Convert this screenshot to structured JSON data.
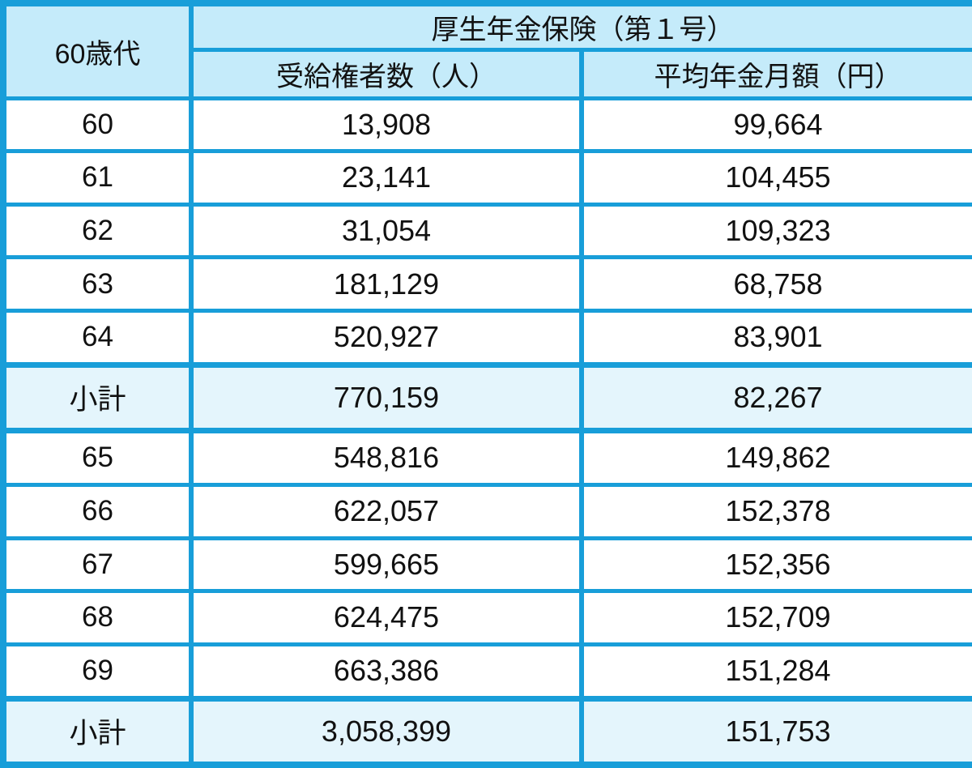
{
  "header": {
    "age_group": "60歳代",
    "insurance": "厚生年金保険（第１号）",
    "beneficiaries": "受給権者数（人）",
    "avg_monthly": "平均年金月額（円）"
  },
  "rows": [
    {
      "label": "60",
      "beneficiaries": "13,908",
      "avg_monthly": "99,664",
      "subtotal": false
    },
    {
      "label": "61",
      "beneficiaries": "23,141",
      "avg_monthly": "104,455",
      "subtotal": false
    },
    {
      "label": "62",
      "beneficiaries": "31,054",
      "avg_monthly": "109,323",
      "subtotal": false
    },
    {
      "label": "63",
      "beneficiaries": "181,129",
      "avg_monthly": "68,758",
      "subtotal": false
    },
    {
      "label": "64",
      "beneficiaries": "520,927",
      "avg_monthly": "83,901",
      "subtotal": false
    },
    {
      "label": "小計",
      "beneficiaries": "770,159",
      "avg_monthly": "82,267",
      "subtotal": true
    },
    {
      "label": "65",
      "beneficiaries": "548,816",
      "avg_monthly": "149,862",
      "subtotal": false
    },
    {
      "label": "66",
      "beneficiaries": "622,057",
      "avg_monthly": "152,378",
      "subtotal": false
    },
    {
      "label": "67",
      "beneficiaries": "599,665",
      "avg_monthly": "152,356",
      "subtotal": false
    },
    {
      "label": "68",
      "beneficiaries": "624,475",
      "avg_monthly": "152,709",
      "subtotal": false
    },
    {
      "label": "69",
      "beneficiaries": "663,386",
      "avg_monthly": "151,284",
      "subtotal": false
    },
    {
      "label": "小計",
      "beneficiaries": "3,058,399",
      "avg_monthly": "151,753",
      "subtotal": true
    }
  ],
  "colors": {
    "border": "#189ED9",
    "header_bg": "#C5EBFA",
    "subtotal_bg": "#E4F5FC",
    "row_bg": "#FFFFFF",
    "text": "#111111"
  },
  "chart_data": {
    "type": "table",
    "title": "厚生年金保険（第１号） 60歳代",
    "columns": [
      "60歳代",
      "受給権者数（人）",
      "平均年金月額（円）"
    ],
    "categories": [
      "60",
      "61",
      "62",
      "63",
      "64",
      "小計(60-64)",
      "65",
      "66",
      "67",
      "68",
      "69",
      "小計(65-69)"
    ],
    "series": [
      {
        "name": "受給権者数（人）",
        "values": [
          13908,
          23141,
          31054,
          181129,
          520927,
          770159,
          548816,
          622057,
          599665,
          624475,
          663386,
          3058399
        ]
      },
      {
        "name": "平均年金月額（円）",
        "values": [
          99664,
          104455,
          109323,
          68758,
          83901,
          82267,
          149862,
          152378,
          152356,
          152709,
          151284,
          151753
        ]
      }
    ]
  }
}
